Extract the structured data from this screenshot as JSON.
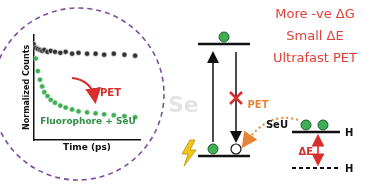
{
  "headline": [
    "More -ve ΔG",
    "Small ΔE",
    "Ultrafast PET"
  ],
  "background_text": "Se",
  "chart_data": {
    "type": "scatter",
    "x_label": "Time (ps)",
    "y_label": "Normalized Counts",
    "tick_labels": false,
    "grid": false,
    "xlim": [
      0,
      100
    ],
    "ylim": [
      0,
      1.1
    ],
    "x": [
      0,
      2,
      4,
      6,
      8,
      10,
      13,
      16,
      20,
      25,
      30,
      36,
      42,
      50,
      58,
      66,
      75,
      85,
      95
    ],
    "series": [
      {
        "color": "#333333",
        "marker": "circle",
        "values": [
          1.0,
          0.96,
          0.95,
          0.94,
          0.93,
          0.94,
          0.92,
          0.93,
          0.92,
          0.91,
          0.92,
          0.9,
          0.91,
          0.9,
          0.9,
          0.89,
          0.9,
          0.89,
          0.88
        ]
      },
      {
        "color": "#3fae55",
        "marker": "circle",
        "values": [
          1.0,
          0.85,
          0.72,
          0.63,
          0.56,
          0.5,
          0.46,
          0.42,
          0.39,
          0.36,
          0.34,
          0.32,
          0.3,
          0.29,
          0.28,
          0.27,
          0.26,
          0.25,
          0.24
        ]
      }
    ],
    "annotations": [
      {
        "text": "PET"
      },
      {
        "text": "Fluorophore + SeU"
      }
    ]
  },
  "energy_diagram": {
    "pet_label": "PET",
    "delta_e_label": "ΔE",
    "donor_label": "SeU",
    "level_labels": [
      "H",
      "H"
    ]
  }
}
